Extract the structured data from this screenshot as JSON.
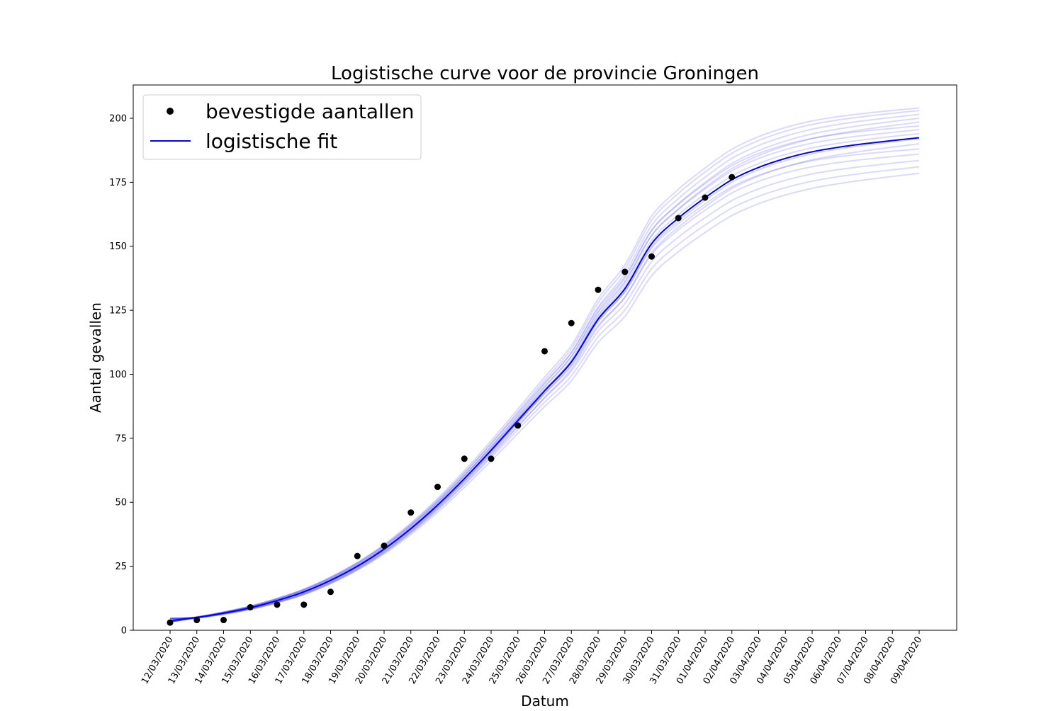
{
  "chart_data": {
    "type": "line",
    "title": "Logistische curve voor de provincie Groningen",
    "xlabel": "Datum",
    "ylabel": "Aantal gevallen",
    "ylim": [
      0,
      213
    ],
    "yticks": [
      0,
      25,
      50,
      75,
      100,
      125,
      150,
      175,
      200
    ],
    "legend_position": "top-left",
    "categories": [
      "12/03/2020",
      "13/03/2020",
      "14/03/2020",
      "15/03/2020",
      "16/03/2020",
      "17/03/2020",
      "18/03/2020",
      "19/03/2020",
      "20/03/2020",
      "21/03/2020",
      "22/03/2020",
      "23/03/2020",
      "24/03/2020",
      "25/03/2020",
      "26/03/2020",
      "27/03/2020",
      "28/03/2020",
      "29/03/2020",
      "30/03/2020",
      "31/03/2020",
      "01/04/2020",
      "02/04/2020",
      "03/04/2020",
      "04/04/2020",
      "05/04/2020",
      "06/04/2020",
      "07/04/2020",
      "08/04/2020",
      "09/04/2020"
    ],
    "series": [
      {
        "name": "bevestigde aantallen",
        "kind": "scatter",
        "color": "#000000",
        "x": [
          "12/03/2020",
          "13/03/2020",
          "14/03/2020",
          "15/03/2020",
          "16/03/2020",
          "17/03/2020",
          "18/03/2020",
          "19/03/2020",
          "20/03/2020",
          "21/03/2020",
          "22/03/2020",
          "23/03/2020",
          "24/03/2020",
          "25/03/2020",
          "26/03/2020",
          "27/03/2020",
          "28/03/2020",
          "29/03/2020",
          "30/03/2020",
          "31/03/2020",
          "01/04/2020",
          "02/04/2020"
        ],
        "values": [
          3,
          4,
          4,
          9,
          10,
          10,
          15,
          29,
          33,
          46,
          56,
          67,
          67,
          80,
          109,
          120,
          133,
          140,
          146,
          161,
          169,
          177
        ]
      },
      {
        "name": "logistische fit",
        "kind": "line",
        "color": "#0000ff",
        "x": [
          "12/03/2020",
          "13/03/2020",
          "14/03/2020",
          "15/03/2020",
          "16/03/2020",
          "17/03/2020",
          "18/03/2020",
          "19/03/2020",
          "20/03/2020",
          "21/03/2020",
          "22/03/2020",
          "23/03/2020",
          "24/03/2020",
          "25/03/2020",
          "26/03/2020",
          "27/03/2020",
          "28/03/2020",
          "29/03/2020",
          "30/03/2020",
          "31/03/2020",
          "01/04/2020",
          "02/04/2020",
          "03/04/2020",
          "04/04/2020",
          "05/04/2020",
          "06/04/2020",
          "07/04/2020",
          "08/04/2020",
          "09/04/2020"
        ],
        "values": [
          3.8,
          5.0,
          6.7,
          8.8,
          11.6,
          15.0,
          19.5,
          25.0,
          31.7,
          39.7,
          48.9,
          59.2,
          70.3,
          81.9,
          93.5,
          104.8,
          121.5,
          133.4,
          151.0,
          161.0,
          169.0,
          176.0,
          180.8,
          184.3,
          186.9,
          188.7,
          190.1,
          191.3,
          192.4
        ]
      }
    ],
    "uncertainty_band": {
      "color": "#0000ff",
      "description_free": true,
      "start_values": [
        3.3,
        4.6
      ],
      "end_values": [
        178.5,
        181.0,
        183.5,
        186.0,
        188.0,
        190.0,
        192.0,
        194.0,
        195.5,
        197.0,
        198.5,
        200.0,
        201.5,
        203.0,
        204.0
      ]
    }
  }
}
